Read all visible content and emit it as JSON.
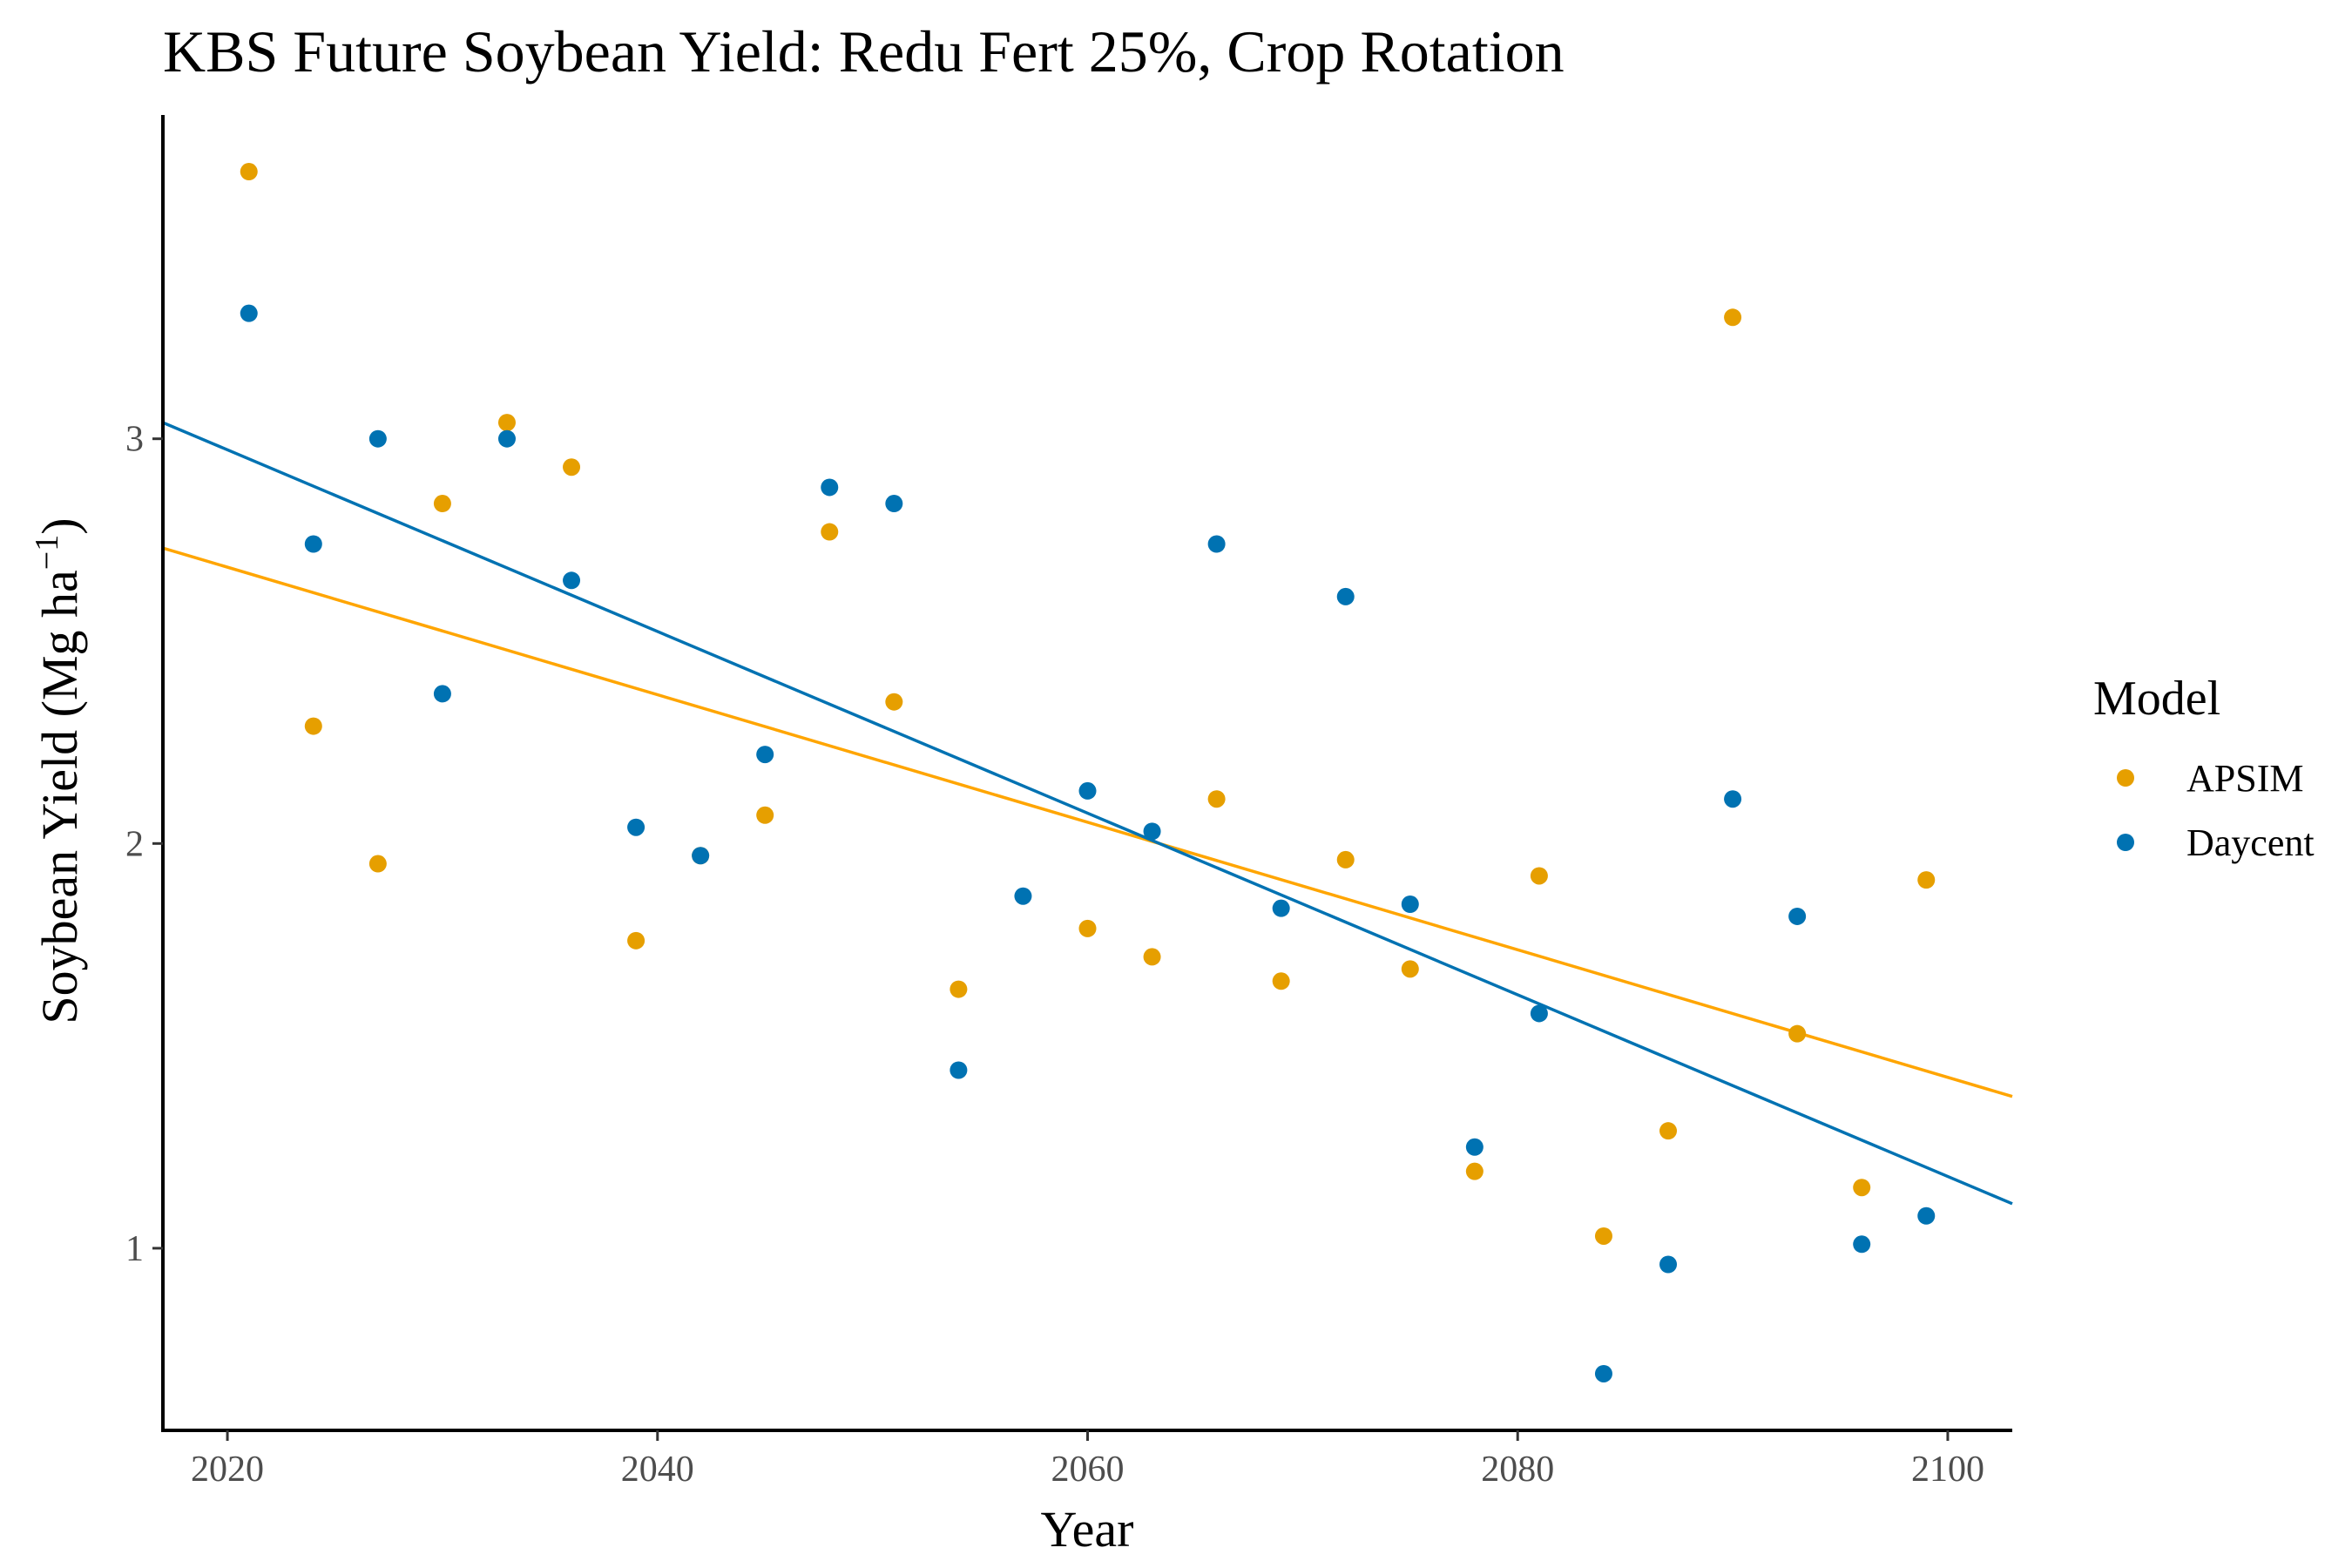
{
  "chart_data": {
    "type": "scatter",
    "title": "KBS Future Soybean Yield:  Redu Fert 25%, Crop Rotation",
    "xlabel": "Year",
    "ylabel": "Soybean Yield (Mg ha",
    "ylabel_sup": "−1",
    "ylabel_close": ")",
    "xlim": [
      2017,
      2103
    ],
    "ylim": [
      0.55,
      3.8
    ],
    "x_ticks": [
      2020,
      2040,
      2060,
      2080,
      2100
    ],
    "y_ticks": [
      1,
      2,
      3
    ],
    "grid": false,
    "legend": {
      "title": "Model",
      "position": "right"
    },
    "series": [
      {
        "name": "APSIM",
        "color": "#E69F00",
        "trend_color": "#FFA500",
        "trend": [
          [
            2017,
            2.73
          ],
          [
            2103,
            1.375
          ]
        ],
        "points": [
          [
            2021,
            3.66
          ],
          [
            2024,
            2.29
          ],
          [
            2027,
            1.95
          ],
          [
            2030,
            2.84
          ],
          [
            2033,
            3.04
          ],
          [
            2036,
            2.93
          ],
          [
            2039,
            1.76
          ],
          [
            2042,
            1.97
          ],
          [
            2045,
            2.07
          ],
          [
            2048,
            2.77
          ],
          [
            2051,
            2.35
          ],
          [
            2054,
            1.64
          ],
          [
            2060,
            1.79
          ],
          [
            2063,
            1.72
          ],
          [
            2066,
            2.11
          ],
          [
            2069,
            1.66
          ],
          [
            2072,
            1.96
          ],
          [
            2075,
            1.69
          ],
          [
            2078,
            1.19
          ],
          [
            2081,
            1.92
          ],
          [
            2084,
            1.03
          ],
          [
            2087,
            1.29
          ],
          [
            2090,
            3.3
          ],
          [
            2093,
            1.53
          ],
          [
            2096,
            1.15
          ],
          [
            2099,
            1.91
          ]
        ]
      },
      {
        "name": "Daycent",
        "color": "#0072B2",
        "trend_color": "#0072B2",
        "trend": [
          [
            2017,
            3.04
          ],
          [
            2103,
            1.11
          ]
        ],
        "points": [
          [
            2021,
            3.31
          ],
          [
            2024,
            2.74
          ],
          [
            2027,
            3.0
          ],
          [
            2030,
            2.37
          ],
          [
            2033,
            3.0
          ],
          [
            2036,
            2.65
          ],
          [
            2039,
            2.04
          ],
          [
            2042,
            1.97
          ],
          [
            2045,
            2.22
          ],
          [
            2048,
            2.88
          ],
          [
            2051,
            2.84
          ],
          [
            2054,
            1.44
          ],
          [
            2057,
            1.87
          ],
          [
            2060,
            2.13
          ],
          [
            2063,
            2.03
          ],
          [
            2066,
            2.74
          ],
          [
            2069,
            1.84
          ],
          [
            2072,
            2.61
          ],
          [
            2075,
            1.85
          ],
          [
            2078,
            1.25
          ],
          [
            2081,
            1.58
          ],
          [
            2084,
            0.69
          ],
          [
            2087,
            0.96
          ],
          [
            2090,
            2.11
          ],
          [
            2093,
            1.82
          ],
          [
            2096,
            1.01
          ],
          [
            2099,
            1.08
          ]
        ]
      }
    ]
  }
}
